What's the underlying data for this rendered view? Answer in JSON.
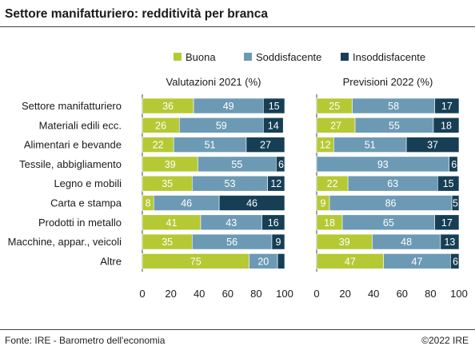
{
  "title": "Settore manifatturiero: redditività per branca",
  "footer": {
    "source": "Fonte: IRE - Barometro dell'economia",
    "copyright": "©2022 IRE"
  },
  "colors": {
    "Buona": "#b5c934",
    "Soddisfacente": "#6c9ab5",
    "Insoddisfacente": "#163f55"
  },
  "chart_data": {
    "type": "bar",
    "stacked": true,
    "orientation": "horizontal",
    "categories": [
      "Settore manifatturiero",
      "Materiali edili ecc.",
      "Alimentari e bevande",
      "Tessile, abbigliamento",
      "Legno e mobili",
      "Carta e stampa",
      "Prodotti in metallo",
      "Macchine, appar., veicoli",
      "Altre"
    ],
    "legend": [
      "Buona",
      "Soddisfacente",
      "Insoddisfacente"
    ],
    "legend_position": "top-right",
    "xlim": [
      0,
      100
    ],
    "xticks": [
      0,
      20,
      40,
      60,
      80,
      100
    ],
    "panels": [
      {
        "title": "Valutazioni 2021 (%)",
        "series": [
          {
            "name": "Buona",
            "values": [
              36,
              26,
              22,
              39,
              35,
              8,
              41,
              35,
              75
            ]
          },
          {
            "name": "Soddisfacente",
            "values": [
              49,
              59,
              51,
              55,
              53,
              46,
              43,
              56,
              20
            ]
          },
          {
            "name": "Insoddisfacente",
            "values": [
              15,
              14,
              27,
              6,
              12,
              46,
              16,
              9,
              5
            ]
          }
        ],
        "labels": {
          "Buona": [
            36,
            26,
            22,
            39,
            35,
            8,
            41,
            35,
            75
          ],
          "Soddisfacente": [
            49,
            59,
            51,
            55,
            53,
            46,
            43,
            56,
            20
          ],
          "Insoddisfacente": [
            15,
            14,
            27,
            6,
            12,
            46,
            16,
            9,
            null
          ]
        }
      },
      {
        "title": "Previsioni 2022 (%)",
        "series": [
          {
            "name": "Buona",
            "values": [
              25,
              27,
              12,
              0,
              22,
              9,
              18,
              39,
              47
            ]
          },
          {
            "name": "Soddisfacente",
            "values": [
              58,
              55,
              51,
              93,
              63,
              86,
              65,
              48,
              47
            ]
          },
          {
            "name": "Insoddisfacente",
            "values": [
              17,
              18,
              37,
              6,
              15,
              5,
              17,
              13,
              6
            ]
          }
        ],
        "labels": {
          "Buona": [
            25,
            27,
            12,
            null,
            22,
            9,
            18,
            39,
            47
          ],
          "Soddisfacente": [
            58,
            55,
            51,
            93,
            63,
            86,
            65,
            48,
            47
          ],
          "Insoddisfacente": [
            17,
            18,
            37,
            6,
            15,
            5,
            17,
            13,
            6
          ]
        }
      }
    ]
  }
}
